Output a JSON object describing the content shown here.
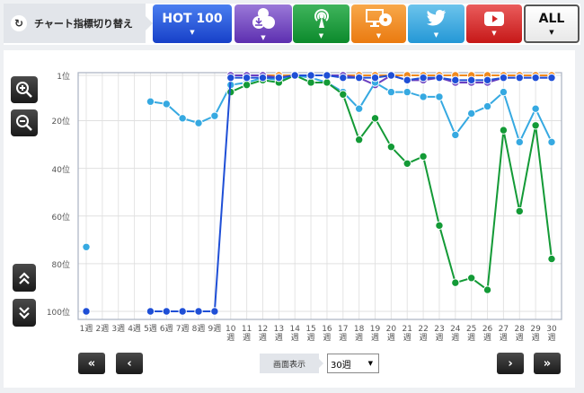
{
  "toolbar": {
    "switch_label": "チャート指標切り替え",
    "tabs": [
      {
        "id": "hot100",
        "label": "HOT 100",
        "icon": "text",
        "color": "#1f4fd6"
      },
      {
        "id": "sales",
        "label": "",
        "icon": "cd-download-icon",
        "color": "#6a3fc0"
      },
      {
        "id": "radio",
        "label": "",
        "icon": "radio-antenna-icon",
        "color": "#139a36"
      },
      {
        "id": "pc",
        "label": "",
        "icon": "pc-cd-icon",
        "color": "#f08a1e"
      },
      {
        "id": "twitter",
        "label": "",
        "icon": "twitter-bird-icon",
        "color": "#36a9e1"
      },
      {
        "id": "youtube",
        "label": "",
        "icon": "youtube-play-icon",
        "color": "#d42626"
      },
      {
        "id": "all",
        "label": "ALL",
        "icon": "text",
        "color": "#ffffff"
      }
    ],
    "dropdown_arrow": "▼"
  },
  "side_controls": {
    "zoom_in": "zoom-in-icon",
    "zoom_out": "zoom-out-icon",
    "scroll_up": "︽",
    "scroll_down": "︾"
  },
  "footer": {
    "first": "«",
    "prev": "‹",
    "next": "›",
    "last": "»",
    "display_label": "画面表示",
    "display_value": "30週",
    "select_caret": "▼"
  },
  "chart_data": {
    "type": "line",
    "title": "",
    "xlabel": "",
    "ylabel": "",
    "y_inverted": true,
    "ylim": [
      1,
      100
    ],
    "y_ticks": [
      "1位",
      "20位",
      "40位",
      "60位",
      "80位",
      "100位"
    ],
    "y_tick_values": [
      1,
      20,
      40,
      60,
      80,
      100
    ],
    "x": [
      "1週",
      "2週",
      "3週",
      "4週",
      "5週",
      "6週",
      "7週",
      "8週",
      "9週",
      "10週",
      "11週",
      "12週",
      "13週",
      "14週",
      "15週",
      "16週",
      "17週",
      "18週",
      "19週",
      "20週",
      "21週",
      "22週",
      "23週",
      "24週",
      "25週",
      "26週",
      "27週",
      "28週",
      "29週",
      "30週"
    ],
    "grid": true,
    "series": [
      {
        "name": "HOT 100",
        "color": "#1f4fd6",
        "values": [
          100,
          null,
          null,
          null,
          100,
          100,
          100,
          100,
          100,
          2,
          2,
          2,
          2,
          1,
          1,
          1,
          2,
          2,
          2,
          1,
          3,
          2,
          2,
          3,
          3,
          3,
          2,
          2,
          2,
          2
        ]
      },
      {
        "name": "Radio",
        "color": "#139a36",
        "values": [
          null,
          null,
          null,
          null,
          null,
          null,
          null,
          null,
          null,
          8,
          5,
          3,
          4,
          1,
          4,
          4,
          9,
          28,
          19,
          31,
          38,
          35,
          64,
          88,
          86,
          91,
          24,
          58,
          22,
          78
        ]
      },
      {
        "name": "Twitter",
        "color": "#36a9e1",
        "values": [
          73,
          null,
          null,
          null,
          12,
          13,
          19,
          21,
          18,
          5,
          4,
          2,
          3,
          1,
          2,
          4,
          8,
          15,
          4,
          8,
          8,
          10,
          10,
          26,
          17,
          14,
          8,
          29,
          15,
          29
        ]
      },
      {
        "name": "Sales",
        "color": "#6a3fc0",
        "values": [
          null,
          null,
          null,
          null,
          null,
          null,
          null,
          null,
          null,
          1,
          1,
          1,
          2,
          1,
          1,
          1,
          1,
          2,
          5,
          1,
          3,
          3,
          2,
          4,
          4,
          4,
          2,
          2,
          2,
          2
        ]
      },
      {
        "name": "PC",
        "color": "#f08a1e",
        "values": [
          null,
          null,
          null,
          null,
          null,
          null,
          null,
          null,
          null,
          1,
          1,
          1,
          1,
          1,
          1,
          1,
          1,
          1,
          1,
          1,
          1,
          1,
          1,
          1,
          1,
          1,
          1,
          1,
          1,
          1
        ]
      },
      {
        "name": "YouTube",
        "color": "#d42626",
        "values": [
          null,
          null,
          null,
          null,
          null,
          null,
          null,
          null,
          null,
          1,
          1,
          1,
          1,
          1,
          1,
          1,
          1,
          1,
          1,
          1,
          1,
          1,
          1,
          1,
          1,
          1,
          1,
          1,
          1,
          1
        ]
      }
    ],
    "legend": "none"
  }
}
